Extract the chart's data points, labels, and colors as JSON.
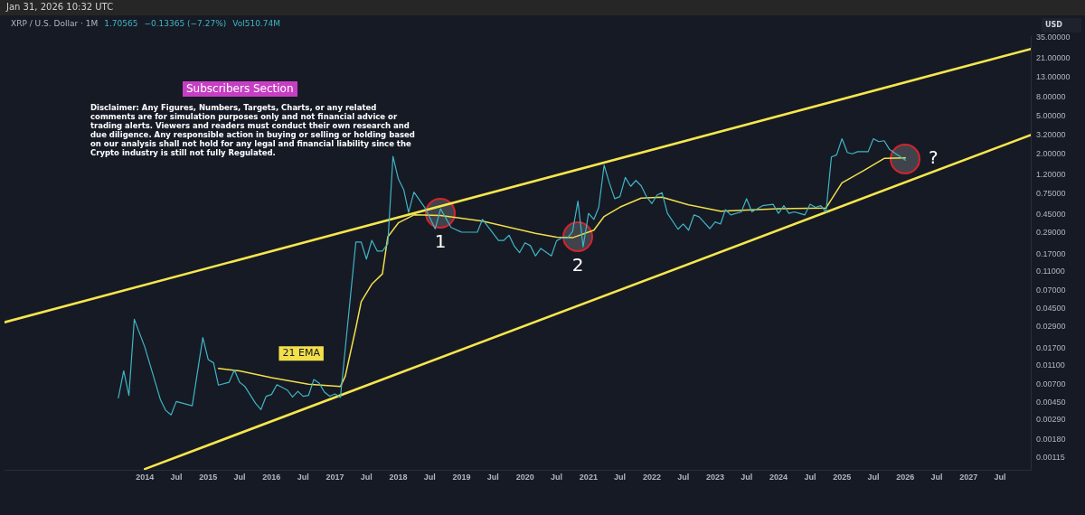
{
  "chart_data": {
    "type": "line",
    "title": "XRP / U.S. Dollar · 1M",
    "ylabel": "USD",
    "annotations": [
      "Jan 31, 2026 10:32 UTC",
      "1.70565",
      "−0.13365 (−7.27%)",
      "Vol510.74M",
      "Subscribers Section",
      "Disclaimer: Any Figures, Numbers, Targets, Charts, or any related comments are for simulation purposes only and not financial advice or trading alerts. Viewers and readers must conduct their own research and due diligence. Any responsible action in buying or selling or holding based on our analysis shall not hold for any legal and financial liability since the Crypto industry is still not fully Regulated.",
      {
        "text": "1",
        "x": "2018-09",
        "y": 0.47
      },
      {
        "text": "2",
        "x": "2020-11",
        "y": 0.26
      },
      {
        "text": "?",
        "x": "2026-01",
        "y": 1.75
      }
    ],
    "log": "y",
    "grid": false,
    "legend": false,
    "marker": "none",
    "xlim": [
      "2011-10-15",
      "2027-12-25"
    ],
    "xticks": [
      {
        "value": "2014-01",
        "label": "2014"
      },
      {
        "value": "2014-07",
        "label": "Jul"
      },
      {
        "value": "2015-01",
        "label": "2015"
      },
      {
        "value": "2015-07",
        "label": "Jul"
      },
      {
        "value": "2016-01",
        "label": "2016"
      },
      {
        "value": "2016-07",
        "label": "Jul"
      },
      {
        "value": "2017-01",
        "label": "2017"
      },
      {
        "value": "2017-07",
        "label": "Jul"
      },
      {
        "value": "2018-01",
        "label": "2018"
      },
      {
        "value": "2018-07",
        "label": "Jul"
      },
      {
        "value": "2019-01",
        "label": "2019"
      },
      {
        "value": "2019-07",
        "label": "Jul"
      },
      {
        "value": "2020-01",
        "label": "2020"
      },
      {
        "value": "2020-07",
        "label": "Jul"
      },
      {
        "value": "2021-01",
        "label": "2021"
      },
      {
        "value": "2021-07",
        "label": "Jul"
      },
      {
        "value": "2022-01",
        "label": "2022"
      },
      {
        "value": "2022-07",
        "label": "Jul"
      },
      {
        "value": "2023-01",
        "label": "2023"
      },
      {
        "value": "2023-07",
        "label": "Jul"
      },
      {
        "value": "2024-01",
        "label": "2024"
      },
      {
        "value": "2024-07",
        "label": "Jul"
      },
      {
        "value": "2025-01",
        "label": "2025"
      },
      {
        "value": "2025-07",
        "label": "Jul"
      },
      {
        "value": "2026-01",
        "label": "2026"
      },
      {
        "value": "2026-07",
        "label": "Jul"
      },
      {
        "value": "2027-01",
        "label": "2027"
      },
      {
        "value": "2027-07",
        "label": "Jul"
      }
    ],
    "ylim": [
      0.00085,
      36
    ],
    "yticks": [
      {
        "value": 35,
        "label": "35.00000"
      },
      {
        "value": 21,
        "label": "21.00000"
      },
      {
        "value": 13,
        "label": "13.00000"
      },
      {
        "value": 8,
        "label": "8.00000"
      },
      {
        "value": 5,
        "label": "5.00000"
      },
      {
        "value": 3.2,
        "label": "3.20000"
      },
      {
        "value": 2,
        "label": "2.00000"
      },
      {
        "value": 1.2,
        "label": "1.20000"
      },
      {
        "value": 0.75,
        "label": "0.75000"
      },
      {
        "value": 0.45,
        "label": "0.45000"
      },
      {
        "value": 0.29,
        "label": "0.29000"
      },
      {
        "value": 0.17,
        "label": "0.17000"
      },
      {
        "value": 0.11,
        "label": "0.11000"
      },
      {
        "value": 0.07,
        "label": "0.07000"
      },
      {
        "value": 0.045,
        "label": "0.04500"
      },
      {
        "value": 0.029,
        "label": "0.02900"
      },
      {
        "value": 0.017,
        "label": "0.01700"
      },
      {
        "value": 0.011,
        "label": "0.01100"
      },
      {
        "value": 0.007,
        "label": "0.00700"
      },
      {
        "value": 0.0045,
        "label": "0.00450"
      },
      {
        "value": 0.0029,
        "label": "0.00290"
      },
      {
        "value": 0.0018,
        "label": "0.00180"
      },
      {
        "value": 0.00115,
        "label": "0.00115"
      }
    ],
    "series": [
      {
        "color": "#3fb6c4",
        "x": [
          "2013-08",
          "2013-09",
          "2013-10",
          "2013-11",
          "2014-01",
          "2014-04",
          "2014-05",
          "2014-06",
          "2014-07",
          "2014-10",
          "2014-12",
          "2015-01",
          "2015-02",
          "2015-03",
          "2015-05",
          "2015-06",
          "2015-07",
          "2015-08",
          "2015-10",
          "2015-11",
          "2015-12",
          "2016-01",
          "2016-02",
          "2016-04",
          "2016-05",
          "2016-06",
          "2016-07",
          "2016-08",
          "2016-09",
          "2016-10",
          "2016-11",
          "2016-12",
          "2017-01",
          "2017-02",
          "2017-05",
          "2017-06",
          "2017-07",
          "2017-08",
          "2017-09",
          "2017-10",
          "2017-11",
          "2017-12",
          "2018-01",
          "2018-02",
          "2018-03",
          "2018-04",
          "2018-06",
          "2018-07",
          "2018-08",
          "2018-09",
          "2018-11",
          "2019-01",
          "2019-04",
          "2019-05",
          "2019-08",
          "2019-09",
          "2019-10",
          "2019-11",
          "2019-12",
          "2020-01",
          "2020-02",
          "2020-03",
          "2020-04",
          "2020-06",
          "2020-07",
          "2020-08",
          "2020-09",
          "2020-10",
          "2020-11",
          "2020-12",
          "2021-01",
          "2021-02",
          "2021-03",
          "2021-04",
          "2021-05",
          "2021-06",
          "2021-07",
          "2021-08",
          "2021-09",
          "2021-10",
          "2021-11",
          "2021-12",
          "2022-01",
          "2022-02",
          "2022-03",
          "2022-04",
          "2022-06",
          "2022-07",
          "2022-08",
          "2022-09",
          "2022-10",
          "2022-12",
          "2023-01",
          "2023-02",
          "2023-03",
          "2023-04",
          "2023-06",
          "2023-07",
          "2023-08",
          "2023-10",
          "2023-12",
          "2024-01",
          "2024-02",
          "2024-03",
          "2024-04",
          "2024-05",
          "2024-06",
          "2024-07",
          "2024-08",
          "2024-09",
          "2024-10",
          "2024-11",
          "2024-12",
          "2025-01",
          "2025-02",
          "2025-03",
          "2025-04",
          "2025-06",
          "2025-07",
          "2025-08",
          "2025-09",
          "2025-10",
          "2026-01"
        ],
        "values": [
          0.005,
          0.0097,
          0.0053,
          0.0344,
          0.0173,
          0.00476,
          0.00368,
          0.00329,
          0.00457,
          0.00412,
          0.022,
          0.0128,
          0.0118,
          0.00683,
          0.00732,
          0.0099,
          0.00732,
          0.0066,
          0.00437,
          0.00375,
          0.0052,
          0.00543,
          0.0069,
          0.00605,
          0.0051,
          0.00586,
          0.0052,
          0.0053,
          0.00785,
          0.0072,
          0.00575,
          0.0052,
          0.0055,
          0.00506,
          0.229,
          0.229,
          0.151,
          0.239,
          0.184,
          0.184,
          0.219,
          1.88,
          1.08,
          0.83,
          0.475,
          0.78,
          0.54,
          0.418,
          0.317,
          0.518,
          0.328,
          0.292,
          0.292,
          0.4,
          0.239,
          0.239,
          0.271,
          0.206,
          0.177,
          0.225,
          0.21,
          0.163,
          0.196,
          0.163,
          0.237,
          0.255,
          0.252,
          0.296,
          0.627,
          0.204,
          0.464,
          0.4,
          0.538,
          1.51,
          0.98,
          0.665,
          0.7,
          1.12,
          0.9,
          1.04,
          0.91,
          0.7,
          0.59,
          0.73,
          0.77,
          0.464,
          0.314,
          0.357,
          0.307,
          0.447,
          0.425,
          0.319,
          0.376,
          0.357,
          0.508,
          0.447,
          0.481,
          0.665,
          0.481,
          0.56,
          0.58,
          0.464,
          0.56,
          0.464,
          0.481,
          0.464,
          0.447,
          0.58,
          0.538,
          0.56,
          0.481,
          1.85,
          1.95,
          2.9,
          2.07,
          2.0,
          2.11,
          2.11,
          2.9,
          2.7,
          2.76,
          2.24,
          1.71
        ]
      },
      {
        "name": "21 EMA",
        "color": "#f2df4a",
        "x": [
          "2015-03",
          "2015-07",
          "2016-01",
          "2016-08",
          "2017-02",
          "2017-03",
          "2017-05",
          "2017-06",
          "2017-08",
          "2017-10",
          "2017-11",
          "2018-01",
          "2018-04",
          "2018-09",
          "2019-05",
          "2020-03",
          "2020-07",
          "2020-10",
          "2021-02",
          "2021-04",
          "2021-07",
          "2021-11",
          "2022-03",
          "2022-08",
          "2023-02",
          "2024-01",
          "2024-10",
          "2025-01",
          "2025-05",
          "2025-09",
          "2026-01"
        ],
        "values": [
          0.0103,
          0.0097,
          0.0082,
          0.007,
          0.0066,
          0.0085,
          0.0278,
          0.053,
          0.0815,
          0.105,
          0.26,
          0.367,
          0.447,
          0.44,
          0.384,
          0.284,
          0.258,
          0.255,
          0.307,
          0.43,
          0.54,
          0.675,
          0.69,
          0.571,
          0.49,
          0.519,
          0.53,
          0.98,
          1.31,
          1.79,
          1.81
        ]
      },
      {
        "color": "#f7e64c",
        "x": [
          "2011-10-15",
          "2027-12-25"
        ],
        "values": [
          0.032,
          26.3
        ]
      },
      {
        "color": "#f7e64c",
        "x": [
          "2014-01",
          "2027-12-25"
        ],
        "values": [
          0.00087,
          3.18
        ]
      }
    ]
  }
}
